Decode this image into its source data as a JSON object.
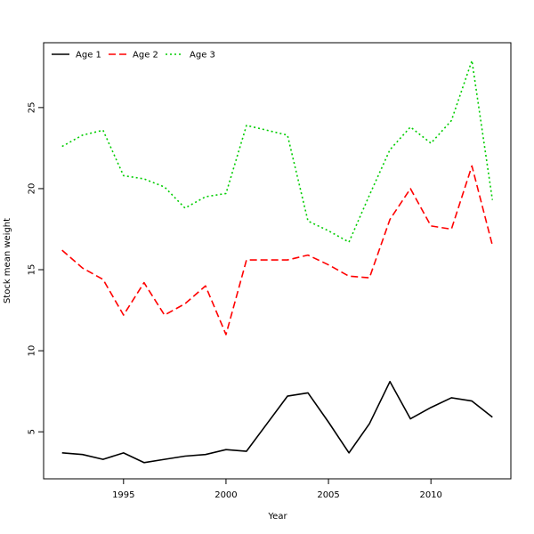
{
  "chart_data": {
    "type": "line",
    "title": "",
    "xlabel": "Year",
    "ylabel": "Stock mean weight",
    "xlim": [
      1991.1,
      2013.9
    ],
    "ylim": [
      2.1,
      29.0
    ],
    "x_ticks": [
      1995,
      2000,
      2005,
      2010
    ],
    "y_ticks": [
      5,
      10,
      15,
      20,
      25
    ],
    "grid": false,
    "legend_position": "top-left",
    "x": [
      1992,
      1993,
      1994,
      1995,
      1996,
      1997,
      1998,
      1999,
      2000,
      2001,
      2002,
      2003,
      2004,
      2005,
      2006,
      2007,
      2008,
      2009,
      2010,
      2011,
      2012,
      2013
    ],
    "series": [
      {
        "name": "Age 1",
        "color": "#000000",
        "dash": "solid",
        "values": [
          3.7,
          3.6,
          3.3,
          3.7,
          3.1,
          3.3,
          3.5,
          3.6,
          3.9,
          3.8,
          5.5,
          7.2,
          7.4,
          5.6,
          3.7,
          5.5,
          8.1,
          5.8,
          6.5,
          7.1,
          6.9,
          5.9
        ]
      },
      {
        "name": "Age 2",
        "color": "#ff0000",
        "dash": "dashed",
        "values": [
          16.2,
          15.1,
          14.4,
          12.2,
          14.2,
          12.2,
          12.9,
          14.0,
          11.0,
          15.6,
          15.6,
          15.6,
          15.9,
          15.3,
          14.6,
          14.5,
          18.1,
          20.0,
          17.7,
          17.5,
          21.4,
          16.5
        ]
      },
      {
        "name": "Age 3",
        "color": "#00cd00",
        "dash": "dotted",
        "values": [
          22.6,
          23.3,
          23.6,
          20.8,
          20.6,
          20.1,
          18.8,
          19.5,
          19.7,
          23.9,
          23.6,
          23.3,
          18.0,
          17.4,
          16.7,
          19.6,
          22.4,
          23.8,
          22.8,
          24.2,
          27.9,
          19.3
        ]
      }
    ]
  }
}
